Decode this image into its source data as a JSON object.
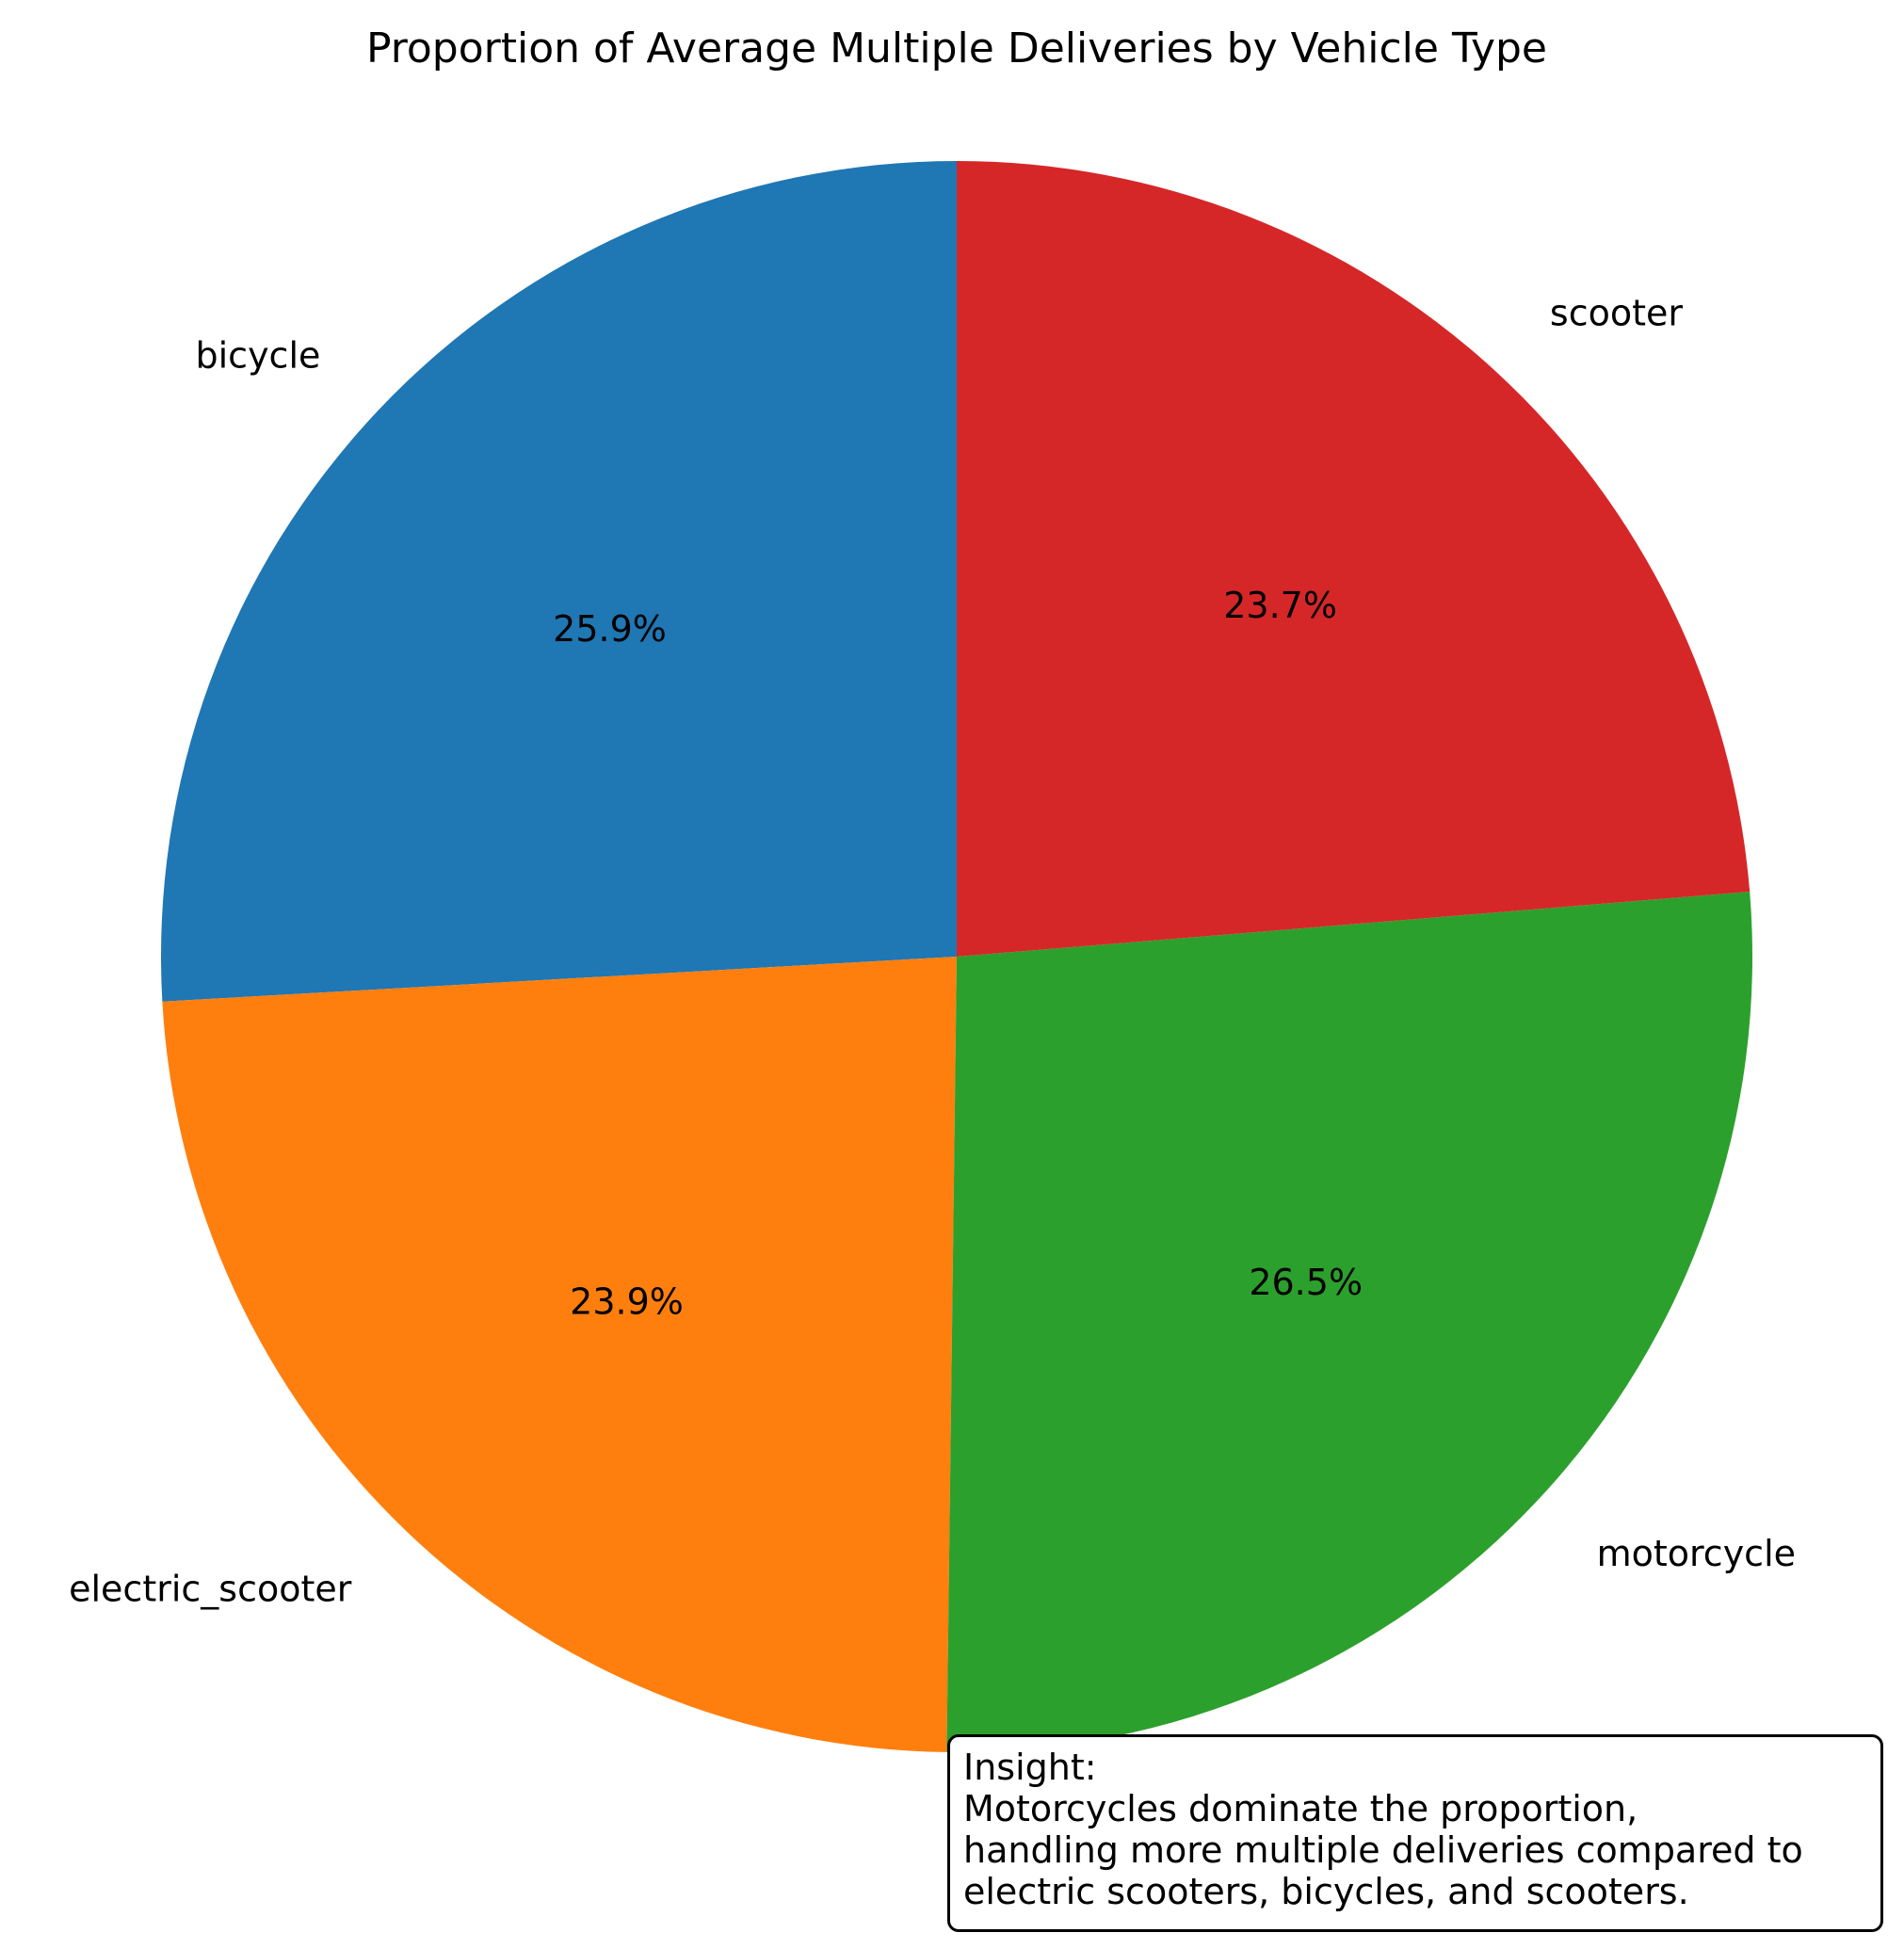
{
  "chart_data": {
    "type": "pie",
    "title": "Proportion of Average Multiple Deliveries by Vehicle Type",
    "start_angle_deg": 90,
    "direction": "counterclockwise",
    "slices": [
      {
        "label": "bicycle",
        "value": 25.9,
        "pct_label": "25.9%",
        "color": "#1f77b4"
      },
      {
        "label": "electric_scooter",
        "value": 23.9,
        "pct_label": "23.9%",
        "color": "#ff7f0e"
      },
      {
        "label": "motorcycle",
        "value": 26.5,
        "pct_label": "26.5%",
        "color": "#2ca02c"
      },
      {
        "label": "scooter",
        "value": 23.7,
        "pct_label": "23.7%",
        "color": "#d62728"
      }
    ]
  },
  "insight": {
    "heading": "Insight:",
    "lines": [
      "Motorcycles dominate the proportion,",
      "handling more multiple deliveries compared to",
      "electric scooters, bicycles, and scooters."
    ]
  }
}
